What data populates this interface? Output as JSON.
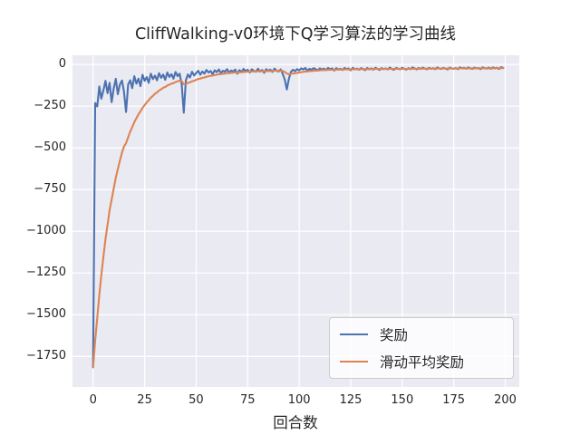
{
  "figure": {
    "title": "CliffWalking-v0环境下Q学习算法的学习曲线",
    "xlabel": "回合数"
  },
  "legend": {
    "position": "lower right",
    "entries": [
      {
        "label": "奖励",
        "color": "#4C72B0"
      },
      {
        "label": "滑动平均奖励",
        "color": "#DD8452"
      }
    ]
  },
  "colors": {
    "plot_background": "#EAEAF2",
    "gridline": "#ffffff",
    "text": "#262626",
    "reward_line": "#4C72B0",
    "moving_avg_line": "#DD8452",
    "legend_border": "#cccccc"
  },
  "chart_data": {
    "type": "line",
    "title": "CliffWalking-v0环境下Q学习算法的学习曲线",
    "xlabel": "回合数",
    "ylabel": "",
    "grid": true,
    "legend_position": "lower right",
    "xlim": [
      -10,
      206.8
    ],
    "ylim": [
      -1933,
      55
    ],
    "xticks": [
      0,
      25,
      50,
      75,
      100,
      125,
      150,
      175,
      200
    ],
    "xticklabels": [
      "0",
      "25",
      "50",
      "75",
      "100",
      "125",
      "150",
      "175",
      "200"
    ],
    "yticks": [
      0,
      -250,
      -500,
      -750,
      -1000,
      -1250,
      -1500,
      -1750
    ],
    "yticklabels": [
      "0",
      "−250",
      "−500",
      "−750",
      "−1000",
      "−1250",
      "−1500",
      "−1750"
    ],
    "x_start": 0,
    "x_step": 1,
    "series": [
      {
        "name": "奖励",
        "color": "#4C72B0",
        "values": [
          -1815,
          -231,
          -252,
          -132,
          -205,
          -156,
          -98,
          -172,
          -110,
          -226,
          -143,
          -86,
          -178,
          -120,
          -96,
          -163,
          -285,
          -120,
          -95,
          -142,
          -70,
          -115,
          -85,
          -130,
          -62,
          -98,
          -76,
          -110,
          -55,
          -88,
          -67,
          -95,
          -52,
          -80,
          -60,
          -92,
          -48,
          -75,
          -58,
          -85,
          -45,
          -70,
          -55,
          -120,
          -289,
          -95,
          -60,
          -78,
          -44,
          -66,
          -52,
          -38,
          -61,
          -42,
          -55,
          -33,
          -48,
          -39,
          -58,
          -35,
          -46,
          -30,
          -52,
          -38,
          -44,
          -28,
          -50,
          -36,
          -42,
          -31,
          -55,
          -34,
          -45,
          -27,
          -40,
          -32,
          -48,
          -29,
          -38,
          -44,
          -26,
          -42,
          -33,
          -50,
          -28,
          -39,
          -31,
          -45,
          -25,
          -36,
          -42,
          -30,
          -55,
          -90,
          -150,
          -85,
          -45,
          -32,
          -40,
          -28,
          -35,
          -24,
          -30,
          -21,
          -38,
          -26,
          -32,
          -22,
          -28,
          -36,
          -23,
          -31,
          -25,
          -34,
          -21,
          -29,
          -24,
          -37,
          -22,
          -30,
          -26,
          -33,
          -21,
          -28,
          -24,
          -35,
          -20,
          -30,
          -25,
          -32,
          -22,
          -27,
          -34,
          -21,
          -29,
          -23,
          -31,
          -20,
          -26,
          -33,
          -22,
          -28,
          -24,
          -30,
          -19,
          -27,
          -32,
          -21,
          -25,
          -29,
          -20,
          -26,
          -31,
          -22,
          -28,
          -18,
          -24,
          -30,
          -21,
          -27,
          -19,
          -25,
          -29,
          -20,
          -26,
          -22,
          -28,
          -18,
          -24,
          -27,
          -20,
          -25,
          -30,
          -19,
          -23,
          -26,
          -21,
          -28,
          -17,
          -24,
          -20,
          -26,
          -18,
          -23,
          -27,
          -19,
          -24,
          -21,
          -28,
          -17,
          -22,
          -25,
          -19,
          -26,
          -18,
          -23,
          -20,
          -27,
          -16,
          -21
        ]
      },
      {
        "name": "滑动平均奖励",
        "color": "#DD8452",
        "values": [
          -1815,
          -1656.6,
          -1519.9,
          -1381.1,
          -1263.5,
          -1152.8,
          -1047.3,
          -959.8,
          -874.8,
          -809.9,
          -743.2,
          -677.5,
          -627.6,
          -576.8,
          -528.7,
          -492.1,
          -471.4,
          -436.3,
          -402.2,
          -376.2,
          -345.6,
          -322.5,
          -298.8,
          -281.9,
          -259.9,
          -243.7,
          -226.9,
          -215.2,
          -199.2,
          -188.1,
          -176.0,
          -167.9,
          -156.3,
          -148.7,
          -139.8,
          -135.0,
          -126.3,
          -121.2,
          -114.9,
          -111.9,
          -105.2,
          -101.7,
          -97.0,
          -99.3,
          -118.3,
          -116.0,
          -110.4,
          -107.2,
          -100.9,
          -97.4,
          -92.9,
          -87.4,
          -84.8,
          -80.5,
          -78.0,
          -73.5,
          -71.0,
          -67.8,
          -66.8,
          -63.6,
          -61.8,
          -58.6,
          -57.9,
          -55.9,
          -54.7,
          -52.0,
          -51.8,
          -50.2,
          -49.4,
          -47.6,
          -48.3,
          -46.9,
          -46.7,
          -44.7,
          -44.2,
          -43.0,
          -43.5,
          -42.1,
          -41.7,
          -41.9,
          -40.3,
          -40.5,
          -39.8,
          -40.8,
          -39.5,
          -39.5,
          -38.7,
          -39.3,
          -37.9,
          -37.7,
          -38.1,
          -37.3,
          -39.1,
          -44.2,
          -54.8,
          -57.8,
          -56.5,
          -54.1,
          -52.7,
          -50.2,
          -48.7,
          -46.2,
          -44.6,
          -42.2,
          -41.8,
          -40.2,
          -39.4,
          -37.7,
          -36.7,
          -36.6,
          -35.2,
          -34.8,
          -33.8,
          -33.8,
          -32.5,
          -32.2,
          -31.4,
          -32.0,
          -31.0,
          -30.9,
          -30.4,
          -30.7,
          -29.7,
          -29.5,
          -29.0,
          -29.6,
          -28.6,
          -28.7,
          -28.3,
          -28.7,
          -28.0,
          -27.9,
          -28.5,
          -27.8,
          -27.9,
          -27.4,
          -27.8,
          -27.0,
          -26.9,
          -27.5,
          -27.0,
          -27.1,
          -26.8,
          -27.1,
          -26.3,
          -26.4,
          -27.0,
          -26.4,
          -26.3,
          -26.6,
          -25.9,
          -25.9,
          -26.4,
          -26.0,
          -26.2,
          -25.4,
          -25.3,
          -25.8,
          -25.3,
          -25.5,
          -24.9,
          -24.9,
          -25.3,
          -24.8,
          -24.9,
          -24.6,
          -24.9,
          -24.2,
          -24.2,
          -24.5,
          -24.1,
          -24.2,
          -24.8,
          -24.2,
          -24.1,
          -24.3,
          -24.0,
          -24.4,
          -23.7,
          -23.7,
          -23.3,
          -23.6,
          -23.0,
          -23.0,
          -23.4,
          -23.0,
          -23.1,
          -22.9,
          -23.4,
          -22.8,
          -22.7,
          -22.9,
          -22.5,
          -22.9,
          -22.4,
          -22.5,
          -22.3,
          -22.8,
          -22.1,
          -22.0
        ]
      }
    ]
  }
}
